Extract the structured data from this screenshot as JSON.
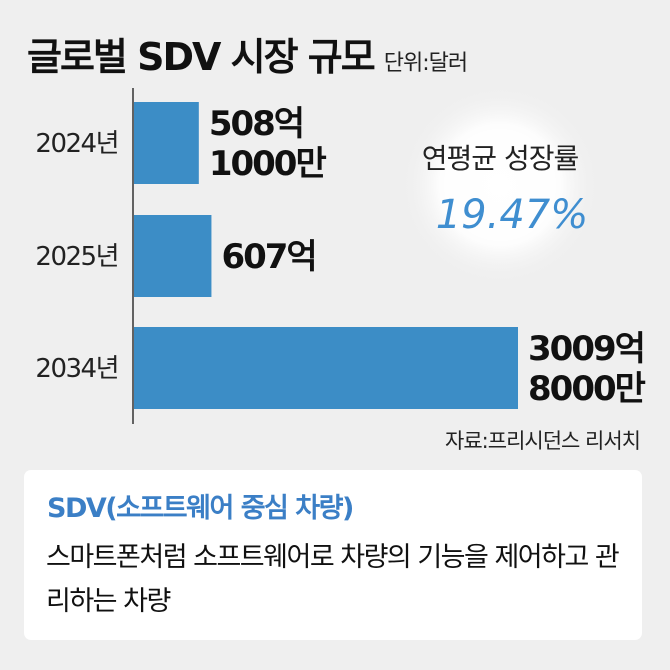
{
  "chart_data": {
    "type": "bar",
    "orientation": "horizontal",
    "title": "글로벌 SDV 시장 규모",
    "unit": "단위:달러",
    "categories": [
      "2024년",
      "2025년",
      "2034년"
    ],
    "values": [
      50810000000,
      60700000000,
      300980000000
    ],
    "value_labels": [
      [
        "508억",
        "1000만"
      ],
      [
        "607억"
      ],
      [
        "3009억",
        "8000만"
      ]
    ],
    "xlim": [
      0,
      300980000000
    ],
    "grid": false,
    "legend": "none",
    "annotation": {
      "label": "연평균 성장률",
      "value": "19.47%"
    },
    "source": "자료:프리시던스 리서치",
    "bar_color": "#3c8dc6"
  },
  "info_box": {
    "term": "SDV(소프트웨어 중심 차량)",
    "description": "스마트폰처럼 소프트웨어로 차량의 기능을 제어하고 관리하는 차량"
  }
}
